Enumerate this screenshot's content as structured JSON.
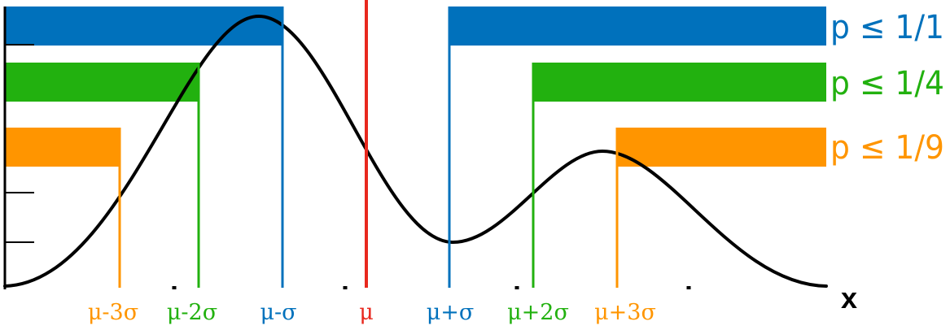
{
  "colors": {
    "one_sigma": "#0071BC",
    "two_sigma": "#22B10F",
    "three_sigma": "#FF9500",
    "mean": "#E8281E",
    "curve": "#000000",
    "axis": "#000000"
  },
  "axis": {
    "x_label": "x"
  },
  "mean": {
    "label": "μ"
  },
  "bounds": [
    {
      "id": "minus-3",
      "label": "μ-3σ",
      "color_key": "three_sigma"
    },
    {
      "id": "minus-2",
      "label": "μ-2σ",
      "color_key": "two_sigma"
    },
    {
      "id": "minus-1",
      "label": "μ-σ",
      "color_key": "one_sigma"
    },
    {
      "id": "plus-1",
      "label": "μ+σ",
      "color_key": "one_sigma"
    },
    {
      "id": "plus-2",
      "label": "μ+2σ",
      "color_key": "two_sigma"
    },
    {
      "id": "plus-3",
      "label": "μ+3σ",
      "color_key": "three_sigma"
    }
  ],
  "regions": [
    {
      "k": 1,
      "label": "p ≤ 1/1",
      "color_key": "one_sigma"
    },
    {
      "k": 2,
      "label": "p ≤ 1/4",
      "color_key": "two_sigma"
    },
    {
      "k": 3,
      "label": "p ≤ 1/9",
      "color_key": "three_sigma"
    }
  ]
}
